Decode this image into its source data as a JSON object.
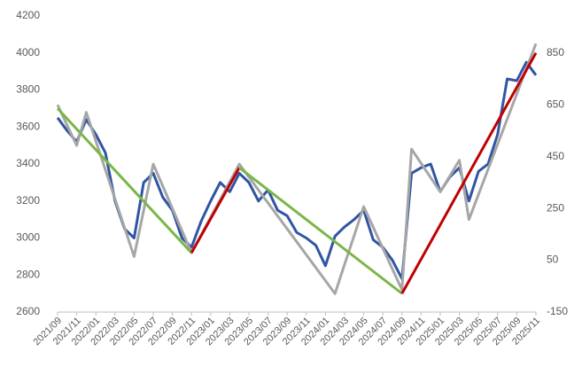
{
  "chart_data": {
    "type": "line",
    "x": [
      "2021/09",
      "2021/10",
      "2021/11",
      "2021/12",
      "2022/01",
      "2022/02",
      "2022/03",
      "2022/04",
      "2022/05",
      "2022/06",
      "2022/07",
      "2022/08",
      "2022/09",
      "2022/10",
      "2022/11",
      "2022/12",
      "2023/01",
      "2023/02",
      "2023/03",
      "2023/04",
      "2023/05",
      "2023/06",
      "2023/07",
      "2023/08",
      "2023/09",
      "2023/10",
      "2023/11",
      "2023/12",
      "2024/01",
      "2024/02",
      "2024/03",
      "2024/04",
      "2024/05",
      "2024/06",
      "2024/07",
      "2024/08",
      "2024/09",
      "2024/10",
      "2024/11",
      "2024/12",
      "2025/01",
      "2025/02",
      "2025/03",
      "2025/04",
      "2025/05",
      "2025/06",
      "2025/07",
      "2025/08",
      "2025/09",
      "2025/10",
      "2025/11"
    ],
    "xticks": [
      "2021/09",
      "2021/11",
      "2022/01",
      "2022/03",
      "2022/05",
      "2022/07",
      "2022/09",
      "2022/11",
      "2023/01",
      "2023/03",
      "2023/05",
      "2023/07",
      "2023/09",
      "2023/11",
      "2024/01",
      "2024/03",
      "2024/05",
      "2024/07",
      "2024/09",
      "2024/11",
      "2025/01",
      "2025/03",
      "2025/05",
      "2025/07",
      "2025/09",
      "2025/11"
    ],
    "ylim": [
      2600,
      4200
    ],
    "yticks": [
      2600,
      2800,
      3000,
      3200,
      3400,
      3600,
      3800,
      4000,
      4200
    ],
    "y2lim": [
      -150,
      993
    ],
    "y2ticks": [
      -150,
      50,
      250,
      450,
      650,
      850
    ],
    "series": [
      {
        "color": "#2f55a4",
        "values": [
          3650,
          3580,
          3520,
          3640,
          3560,
          3460,
          3200,
          3050,
          3000,
          3300,
          3350,
          3220,
          3150,
          3000,
          2950,
          3090,
          3200,
          3300,
          3250,
          3350,
          3300,
          3200,
          3260,
          3150,
          3120,
          3030,
          3000,
          2960,
          2850,
          3010,
          3060,
          3100,
          3150,
          2990,
          2950,
          2880,
          2780,
          3350,
          3380,
          3400,
          3250,
          3330,
          3380,
          3200,
          3360,
          3400,
          3560,
          3860,
          3850,
          3950,
          3880
        ]
      },
      {
        "color": "#a6a6a6",
        "axis": "y2",
        "values": [
          650,
          571,
          493,
          621,
          510,
          399,
          287,
          176,
          64,
          243,
          421,
          336,
          250,
          164,
          79,
          147,
          216,
          284,
          353,
          421,
          371,
          321,
          271,
          221,
          171,
          121,
          71,
          21,
          -29,
          -79,
          34,
          145,
          257,
          177,
          96,
          16,
          -64,
          479,
          424,
          369,
          314,
          375,
          436,
          207,
          304,
          401,
          498,
          595,
          692,
          789,
          886
        ]
      },
      {
        "color": "#7ab648",
        "x": [
          "2021/09",
          "2022/11"
        ],
        "values": [
          3700,
          2920
        ]
      },
      {
        "color": "#c00000",
        "x": [
          "2022/11",
          "2023/04"
        ],
        "values": [
          2920,
          3380
        ]
      },
      {
        "color": "#7ab648",
        "x": [
          "2023/04",
          "2024/09"
        ],
        "values": [
          3380,
          2700
        ]
      },
      {
        "color": "#c00000",
        "x": [
          "2024/09",
          "2025/11"
        ],
        "values": [
          2700,
          4000
        ]
      }
    ]
  }
}
